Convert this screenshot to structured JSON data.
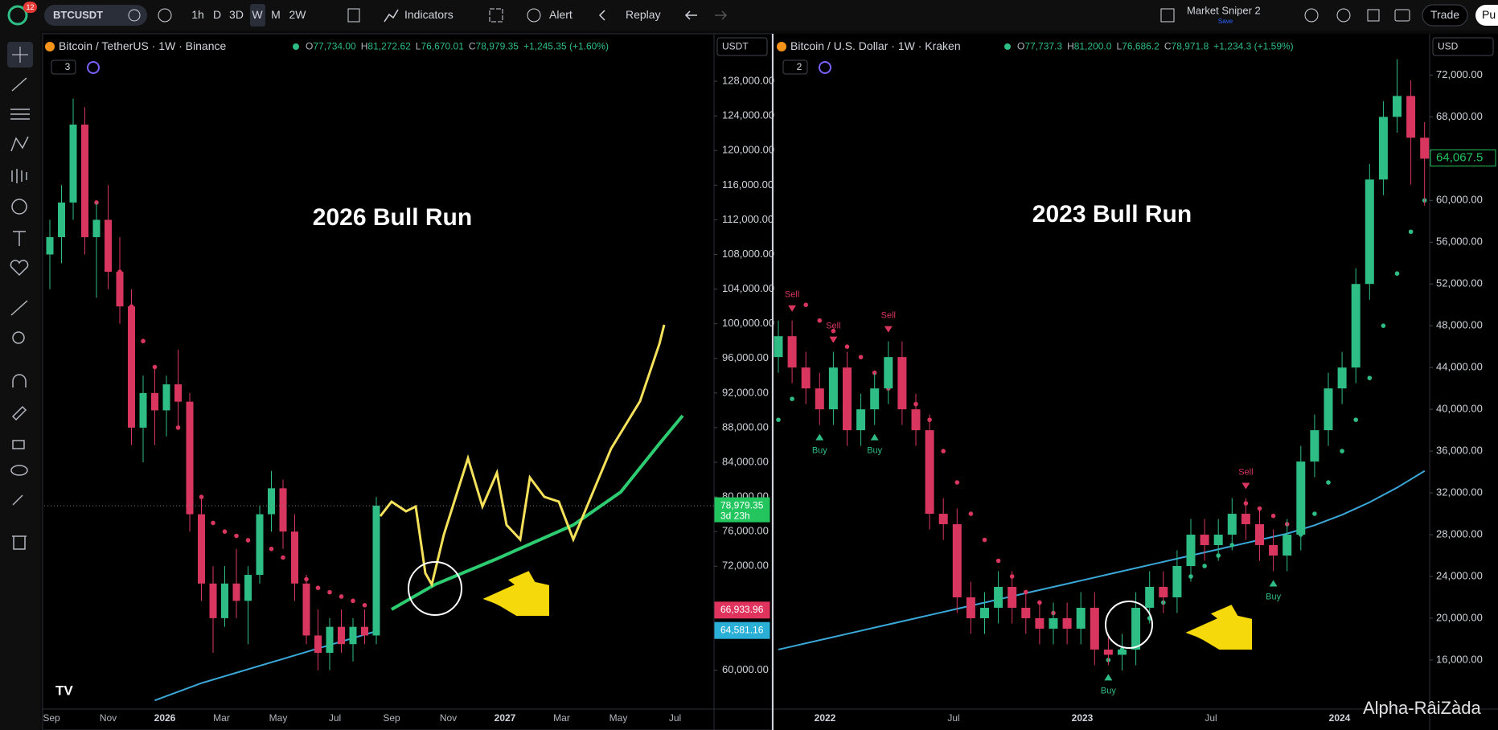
{
  "toolbar": {
    "badge": "12",
    "symbol": "BTCUSDT",
    "intervals": [
      "1h",
      "D",
      "3D",
      "W",
      "M",
      "2W"
    ],
    "indicators": "Indicators",
    "alert": "Alert",
    "replay": "Replay",
    "layout_name": "Market Sniper 2",
    "save": "Save",
    "trade": "Trade",
    "publish": "Pu"
  },
  "watermark": "Alpha-RâiZàda",
  "chart_data": [
    {
      "type": "candlestick",
      "symbol": "Bitcoin / TetherUS · 1W · Binance",
      "ohlc_header": [
        {
          "label": "O",
          "value": "77,734.00"
        },
        {
          "label": "H",
          "value": "81,272.62"
        },
        {
          "label": "L",
          "value": "76,670.01"
        },
        {
          "label": "C",
          "value": "78,979.35"
        }
      ],
      "change": "+1,245.35 (+1.60%)",
      "currency": "USDT",
      "pane_badge": "3",
      "annotation": "2026 Bull Run",
      "up_color": "#2ebd85",
      "down_color": "#d9365f",
      "ylim": [
        55500,
        133300
      ],
      "yticks": [
        {
          "value": 60000,
          "label": "60,000.00"
        },
        {
          "value": 72000,
          "label": "72,000.00"
        },
        {
          "value": 76000,
          "label": "76,000.00"
        },
        {
          "value": 80000,
          "label": "80,000.00"
        },
        {
          "value": 84000,
          "label": "84,000.00"
        },
        {
          "value": 88000,
          "label": "88,000.00"
        },
        {
          "value": 92000,
          "label": "92,000.00"
        },
        {
          "value": 96000,
          "label": "96,000.00"
        },
        {
          "value": 100000,
          "label": "100,000.00"
        },
        {
          "value": 104000,
          "label": "104,000.00"
        },
        {
          "value": 108000,
          "label": "108,000.00"
        },
        {
          "value": 112000,
          "label": "112,000.00"
        },
        {
          "value": 116000,
          "label": "116,000.00"
        },
        {
          "value": 120000,
          "label": "120,000.00"
        },
        {
          "value": 124000,
          "label": "124,000.00"
        },
        {
          "value": 128000,
          "label": "128,000.00"
        }
      ],
      "x_labels": [
        "Sep",
        "Nov",
        "2026",
        "Mar",
        "May",
        "Jul",
        "Sep",
        "Nov",
        "2027",
        "Mar",
        "May",
        "Jul"
      ],
      "candles": [
        [
          108000,
          112000,
          104000,
          110000
        ],
        [
          110000,
          116000,
          107000,
          114000
        ],
        [
          114000,
          126000,
          112000,
          123000
        ],
        [
          123000,
          125000,
          108000,
          110000
        ],
        [
          110000,
          114000,
          103000,
          112000
        ],
        [
          112000,
          116000,
          104000,
          106000
        ],
        [
          106000,
          110000,
          100000,
          102000
        ],
        [
          102000,
          104000,
          86000,
          88000
        ],
        [
          88000,
          94000,
          84000,
          92000
        ],
        [
          92000,
          95000,
          86000,
          90000
        ],
        [
          90000,
          94000,
          87000,
          93000
        ],
        [
          93000,
          97000,
          88000,
          91000
        ],
        [
          91000,
          92000,
          76000,
          78000
        ],
        [
          78000,
          80000,
          68000,
          70000
        ],
        [
          70000,
          72000,
          62000,
          66000
        ],
        [
          66000,
          72000,
          65000,
          70000
        ],
        [
          70000,
          74000,
          66000,
          68000
        ],
        [
          68000,
          72000,
          63000,
          71000
        ],
        [
          71000,
          79000,
          70000,
          78000
        ],
        [
          78000,
          83000,
          76000,
          81000
        ],
        [
          81000,
          82000,
          74000,
          76000
        ],
        [
          76000,
          78000,
          68000,
          70000
        ],
        [
          70000,
          71000,
          63000,
          64000
        ],
        [
          64000,
          67000,
          60000,
          62000
        ],
        [
          62000,
          66000,
          60000,
          65000
        ],
        [
          65000,
          67000,
          62000,
          63000
        ],
        [
          63000,
          66000,
          61000,
          65000
        ],
        [
          65000,
          67000,
          63000,
          64000
        ],
        [
          64000,
          80000,
          63000,
          79000
        ]
      ],
      "ma": {
        "color": "#3aa8d8",
        "values": [
          null,
          null,
          null,
          null,
          null,
          null,
          null,
          null,
          null,
          56500,
          57000,
          57500,
          58000,
          58500,
          58900,
          59300,
          59700,
          60100,
          60500,
          60900,
          61300,
          61700,
          62100,
          62500,
          62900,
          63300,
          63700,
          64100,
          64500
        ]
      },
      "sar_down": {
        "color": "#d9365f",
        "values": [
          null,
          null,
          null,
          115000,
          114000,
          111000,
          106000,
          102000,
          98000,
          95000,
          92000,
          88000,
          84000,
          80000,
          77000,
          76000,
          75500,
          75000,
          74500,
          74000,
          73000,
          72000,
          70500,
          69500,
          69000,
          68500,
          68000,
          67500,
          67000
        ]
      },
      "sar_up": {
        "color": "#2ebd85",
        "values": [
          null,
          null,
          null,
          null,
          null,
          null,
          null,
          null,
          null,
          null,
          null,
          null,
          null,
          null,
          null,
          null,
          null,
          null,
          null,
          null,
          null,
          null,
          null,
          null,
          null,
          null,
          null,
          null,
          null
        ]
      },
      "price_tags": [
        {
          "value": 78979.35,
          "label": "78,979.35",
          "sub": "3d 23h",
          "color": "#22c55e"
        },
        {
          "value": 66933.96,
          "label": "66,933.96",
          "color": "#e0345f"
        },
        {
          "value": 64581.16,
          "label": "64,581.16",
          "color": "#2ab0d6"
        }
      ],
      "signals": []
    },
    {
      "type": "candlestick",
      "symbol": "Bitcoin / U.S. Dollar · 1W · Kraken",
      "ohlc_header": [
        {
          "label": "O",
          "value": "77,737.3"
        },
        {
          "label": "H",
          "value": "81,200.0"
        },
        {
          "label": "L",
          "value": "76,686.2"
        },
        {
          "label": "C",
          "value": "78,971.8"
        }
      ],
      "change": "+1,234.3 (+1.59%)",
      "currency": "USD",
      "pane_badge": "2",
      "annotation": "2023 Bull Run",
      "up_color": "#2ebd85",
      "down_color": "#d9365f",
      "ylim": [
        11300,
        75800
      ],
      "yticks": [
        {
          "value": 16000,
          "label": "16,000.00"
        },
        {
          "value": 20000,
          "label": "20,000.00"
        },
        {
          "value": 24000,
          "label": "24,000.00"
        },
        {
          "value": 28000,
          "label": "28,000.00"
        },
        {
          "value": 32000,
          "label": "32,000.00"
        },
        {
          "value": 36000,
          "label": "36,000.00"
        },
        {
          "value": 40000,
          "label": "40,000.00"
        },
        {
          "value": 44000,
          "label": "44,000.00"
        },
        {
          "value": 48000,
          "label": "48,000.00"
        },
        {
          "value": 52000,
          "label": "52,000.00"
        },
        {
          "value": 56000,
          "label": "56,000.00"
        },
        {
          "value": 60000,
          "label": "60,000.00"
        },
        {
          "value": 68000,
          "label": "68,000.00"
        },
        {
          "value": 72000,
          "label": "72,000.00"
        }
      ],
      "x_labels": [
        "2022",
        "Jul",
        "2023",
        "Jul",
        "2024"
      ],
      "candles": [
        [
          45000,
          48500,
          43500,
          47000
        ],
        [
          47000,
          48500,
          42500,
          44000
        ],
        [
          44000,
          45500,
          40500,
          42000
        ],
        [
          42000,
          43500,
          38500,
          40000
        ],
        [
          40000,
          45500,
          38500,
          44000
        ],
        [
          44000,
          45500,
          36500,
          38000
        ],
        [
          38000,
          41500,
          36500,
          40000
        ],
        [
          40000,
          43500,
          38500,
          42000
        ],
        [
          42000,
          46500,
          40500,
          45000
        ],
        [
          45000,
          46500,
          38500,
          40000
        ],
        [
          40000,
          41500,
          36500,
          38000
        ],
        [
          38000,
          39500,
          28500,
          30000
        ],
        [
          30000,
          31500,
          27500,
          29000
        ],
        [
          29000,
          30500,
          20500,
          22000
        ],
        [
          22000,
          23500,
          18500,
          20000
        ],
        [
          20000,
          22500,
          18500,
          21000
        ],
        [
          21000,
          24500,
          19500,
          23000
        ],
        [
          23000,
          24500,
          19500,
          21000
        ],
        [
          21000,
          22500,
          18500,
          20000
        ],
        [
          20000,
          21500,
          17500,
          19000
        ],
        [
          19000,
          21500,
          17500,
          20000
        ],
        [
          20000,
          21500,
          17500,
          19000
        ],
        [
          19000,
          22500,
          17500,
          21000
        ],
        [
          21000,
          22500,
          15500,
          17000
        ],
        [
          17000,
          18500,
          15500,
          16500
        ],
        [
          16500,
          18500,
          15000,
          17000
        ],
        [
          17000,
          22500,
          15500,
          21000
        ],
        [
          21000,
          24500,
          19500,
          23000
        ],
        [
          23000,
          24500,
          20500,
          22000
        ],
        [
          22000,
          26500,
          20500,
          25000
        ],
        [
          25000,
          29500,
          23500,
          28000
        ],
        [
          28000,
          29500,
          25500,
          27000
        ],
        [
          27000,
          29500,
          25500,
          28000
        ],
        [
          28000,
          31500,
          26500,
          30000
        ],
        [
          30000,
          31500,
          27500,
          29000
        ],
        [
          29000,
          30500,
          25500,
          27000
        ],
        [
          27000,
          28500,
          24500,
          26000
        ],
        [
          26000,
          29500,
          24500,
          28000
        ],
        [
          28000,
          36500,
          26500,
          35000
        ],
        [
          35000,
          39500,
          33500,
          38000
        ],
        [
          38000,
          43500,
          36500,
          42000
        ],
        [
          42000,
          45500,
          40500,
          44000
        ],
        [
          44000,
          53500,
          42500,
          52000
        ],
        [
          52000,
          63500,
          50500,
          62000
        ],
        [
          62000,
          69500,
          60500,
          68000
        ],
        [
          68000,
          73500,
          66500,
          70000
        ],
        [
          70000,
          71500,
          61500,
          66000
        ],
        [
          66000,
          67500,
          59500,
          64000
        ]
      ],
      "ma": {
        "color": "#3aa8d8",
        "values": [
          17000,
          17300,
          17600,
          17900,
          18200,
          18500,
          18800,
          19100,
          19400,
          19700,
          20000,
          20300,
          20600,
          20900,
          21200,
          21500,
          21800,
          22100,
          22400,
          22700,
          23000,
          23300,
          23600,
          23900,
          24200,
          24500,
          24800,
          25100,
          25400,
          25700,
          26000,
          26300,
          26600,
          26900,
          27200,
          27500,
          27800,
          28100,
          28500,
          28900,
          29400,
          29900,
          30500,
          31100,
          31800,
          32500,
          33300,
          34100
        ]
      },
      "sar_down": {
        "color": "#d9365f",
        "values": [
          null,
          null,
          50000,
          48500,
          47500,
          46000,
          45000,
          43500,
          42000,
          41000,
          40500,
          39000,
          36000,
          33000,
          30000,
          27500,
          25500,
          24000,
          22500,
          21500,
          20500,
          19800,
          19200,
          18600,
          null,
          null,
          null,
          null,
          null,
          null,
          null,
          null,
          null,
          null,
          31000,
          30500,
          29800,
          29000,
          null,
          null,
          null,
          null,
          null,
          null,
          null,
          null,
          null,
          null
        ]
      },
      "sar_up": {
        "color": "#2ebd85",
        "values": [
          39000,
          41000,
          null,
          null,
          null,
          null,
          null,
          null,
          null,
          null,
          null,
          null,
          null,
          null,
          null,
          null,
          null,
          null,
          null,
          null,
          null,
          null,
          null,
          null,
          16000,
          17000,
          18500,
          20000,
          21500,
          22500,
          24000,
          25000,
          26000,
          27000,
          null,
          null,
          null,
          null,
          28000,
          30000,
          33000,
          36000,
          39000,
          43000,
          48000,
          53000,
          57000,
          60000
        ]
      },
      "price_tags": [
        {
          "value": 64067.5,
          "label": "64,067.5",
          "color": "#22c55e"
        }
      ],
      "signals": [
        {
          "label": "Sell",
          "candle": 1
        },
        {
          "label": "Buy",
          "candle": 3
        },
        {
          "label": "Sell",
          "candle": 4
        },
        {
          "label": "Sell",
          "candle": 8
        },
        {
          "label": "Buy",
          "candle": 7
        },
        {
          "label": "Buy",
          "candle": 24
        },
        {
          "label": "Sell",
          "candle": 34
        },
        {
          "label": "Buy",
          "candle": 36
        }
      ]
    }
  ]
}
